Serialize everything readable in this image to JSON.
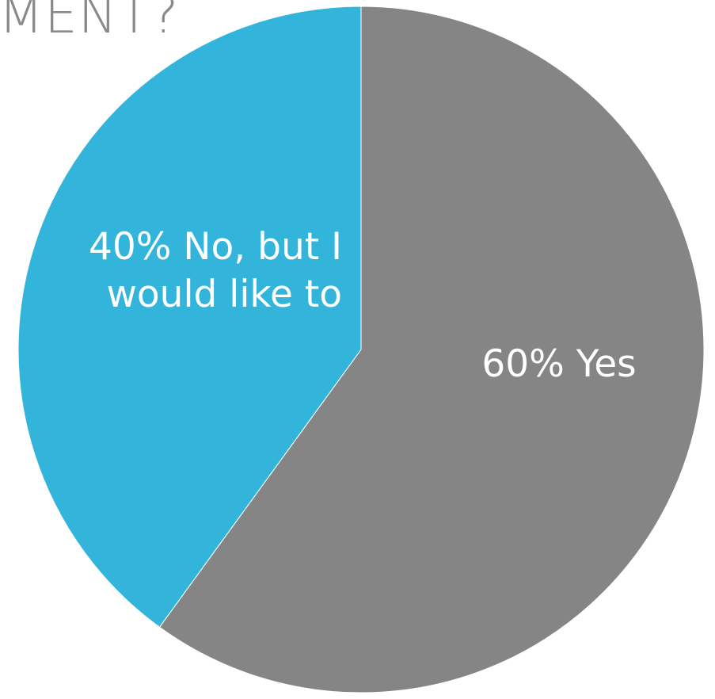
{
  "chart_data": {
    "type": "pie",
    "title": "MENT?",
    "slices": [
      {
        "name": "Yes",
        "value": 60,
        "label_lines": [
          "60% Yes"
        ],
        "color": "#858585"
      },
      {
        "name": "No, but I would like to",
        "value": 40,
        "label_lines": [
          "40% No, but I",
          "would like to"
        ],
        "color": "#33b5db"
      }
    ],
    "start_angle_deg": 0,
    "direction": "clockwise",
    "legend": "none"
  }
}
